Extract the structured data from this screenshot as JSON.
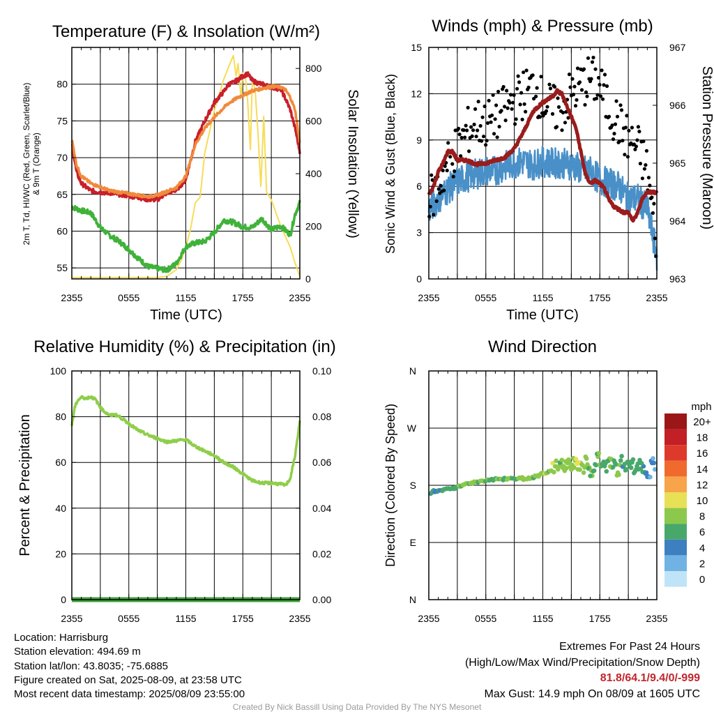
{
  "panels": {
    "temperature": {
      "title": "Temperature (F) & Insolation (W/m²)",
      "xlabel": "Time (UTC)",
      "ylabel_left_line1": "2m T, Td, HI/WC (Red, Green, Scarlet/Blue)",
      "ylabel_left_line2": "& 9m T (Orange)",
      "ylabel_right": "Solar Insolation (Yellow)"
    },
    "winds": {
      "title": "Winds (mph) & Pressure (mb)",
      "xlabel": "Time (UTC)",
      "ylabel_left": "Sonic Wind & Gust (Blue, Black)",
      "ylabel_right": "Station Pressure (Maroon)"
    },
    "humidity": {
      "title": "Relative Humidity (%) & Precipitation (in)",
      "ylabel_left": "Percent & Precipitation"
    },
    "direction": {
      "title": "Wind Direction",
      "ylabel_left": "Direction (Colored By Speed)",
      "colorbar_title": "mph"
    }
  },
  "chart_data": [
    {
      "type": "line",
      "id": "temperature",
      "x_ticks": [
        "2355",
        "0555",
        "1155",
        "1755",
        "2355"
      ],
      "xlim": [
        0,
        24
      ],
      "ylim": [
        53.5,
        85
      ],
      "yticks": [
        55,
        60,
        65,
        70,
        75,
        80
      ],
      "y2lim": [
        0,
        880
      ],
      "y2ticks": [
        0,
        200,
        400,
        600,
        800
      ],
      "colors": {
        "temp": "#c8202b",
        "dewpoint": "#3fb23a",
        "hiwc": "#e02a26",
        "temp9m": "#f08a3c",
        "solar": "#f7dc56"
      },
      "series": [
        {
          "name": "2m T",
          "axis": "left",
          "x": [
            0,
            0.5,
            1,
            2,
            3,
            4,
            5,
            6,
            7,
            8,
            9,
            10,
            11,
            12,
            13,
            14,
            15,
            16,
            16.5,
            17,
            17.5,
            18,
            18.5,
            19,
            19.5,
            20,
            21,
            22,
            22.5,
            23,
            23.5,
            24
          ],
          "values": [
            72,
            68,
            66.5,
            65.5,
            65.3,
            65.2,
            65,
            64.8,
            64.6,
            64.3,
            64.3,
            65.2,
            65.6,
            67,
            72.2,
            75,
            77.5,
            79,
            80,
            80.2,
            80.6,
            81.1,
            81.4,
            80.5,
            80.2,
            80,
            79.6,
            79.3,
            78,
            76.5,
            74,
            70.8
          ]
        },
        {
          "name": "9m T",
          "axis": "left",
          "x": [
            0,
            0.5,
            1,
            2,
            3,
            4,
            5,
            6,
            7,
            8,
            9,
            10,
            11,
            12,
            13,
            14,
            15,
            16,
            16.5,
            17,
            17.5,
            18,
            18.5,
            19,
            20,
            21,
            22,
            22.5,
            23,
            23.5,
            24
          ],
          "values": [
            72.5,
            69,
            67.5,
            66.5,
            66,
            65.5,
            65.3,
            65.1,
            64.9,
            64.7,
            64.9,
            65.4,
            65.9,
            67.5,
            71.8,
            74,
            75.5,
            76.8,
            77.4,
            77.8,
            78.2,
            78.5,
            78.8,
            79.1,
            79.4,
            79.7,
            79.6,
            79.2,
            78.2,
            76.5,
            72
          ]
        },
        {
          "name": "Td",
          "axis": "left",
          "x": [
            0,
            1,
            2,
            3,
            4,
            5,
            6,
            7,
            8,
            9,
            10,
            11,
            12,
            13,
            14,
            15,
            16,
            17,
            18,
            19,
            20,
            21,
            22,
            23,
            23.5,
            24
          ],
          "values": [
            63.3,
            62.8,
            62.5,
            60.5,
            59.4,
            58.6,
            57.5,
            56.3,
            55.2,
            54.9,
            54.7,
            55.6,
            57.9,
            58.4,
            58.6,
            59.8,
            61.5,
            61.2,
            60.6,
            60.5,
            61.7,
            60.2,
            60.7,
            59.5,
            62.3,
            63.9
          ]
        },
        {
          "name": "Solar",
          "axis": "right",
          "x": [
            0,
            6,
            9,
            10,
            11,
            11.5,
            12,
            12.5,
            13,
            13.5,
            14,
            14.5,
            15,
            15.5,
            16,
            16.5,
            17,
            17.3,
            17.5,
            17.8,
            18,
            18.3,
            18.5,
            18.8,
            19,
            19.3,
            19.6,
            19.9,
            20.2,
            20.5,
            21,
            21.5,
            22,
            22.5,
            23,
            23.5,
            24
          ],
          "values": [
            5,
            5,
            5,
            10,
            35,
            70,
            120,
            190,
            290,
            310,
            480,
            560,
            640,
            700,
            760,
            805,
            850,
            770,
            820,
            690,
            780,
            760,
            680,
            490,
            760,
            720,
            550,
            350,
            620,
            330,
            300,
            250,
            200,
            160,
            120,
            60,
            10
          ]
        }
      ]
    },
    {
      "type": "line",
      "id": "winds",
      "x_ticks": [
        "2355",
        "0555",
        "1155",
        "1755",
        "2355"
      ],
      "xlim": [
        0,
        24
      ],
      "ylim": [
        0,
        15
      ],
      "yticks": [
        0,
        3,
        6,
        9,
        12,
        15
      ],
      "y2lim": [
        963,
        967
      ],
      "y2ticks": [
        963,
        964,
        965,
        966,
        967
      ],
      "colors": {
        "wind": "#4a90c8",
        "gust": "#000000",
        "pressure": "#9a1c1c"
      },
      "series": [
        {
          "name": "Sonic Wind",
          "axis": "left",
          "x": [
            0,
            1,
            2,
            3,
            4,
            5,
            6,
            7,
            8,
            9,
            10,
            11,
            12,
            13,
            14,
            15,
            16,
            17,
            18,
            19,
            20,
            21,
            22,
            23,
            23.5,
            24
          ],
          "values": [
            4.5,
            5.2,
            5.8,
            6.3,
            6.6,
            6.8,
            7.0,
            7.0,
            7.3,
            7.5,
            7.6,
            7.4,
            7.6,
            7.5,
            7.5,
            7.4,
            7.1,
            7.0,
            6.4,
            6.2,
            6.0,
            5.2,
            5.2,
            4.5,
            3.0,
            1.5
          ]
        },
        {
          "name": "Gust",
          "axis": "left",
          "x": [
            0,
            1,
            2,
            3,
            4,
            5,
            6,
            7,
            8,
            9,
            10,
            11,
            12,
            13,
            14,
            15,
            16,
            17,
            18,
            19,
            20,
            21,
            22,
            23,
            23.5,
            24
          ],
          "values": [
            5.0,
            6.0,
            7.5,
            8.5,
            9.5,
            10.2,
            10.0,
            10.5,
            11.0,
            11.5,
            12.0,
            12.5,
            11.5,
            11.0,
            11.0,
            12.0,
            12.5,
            13.0,
            12.5,
            11.0,
            10.0,
            9.0,
            8.5,
            7.0,
            4.5,
            2.5
          ]
        },
        {
          "name": "Pressure",
          "axis": "right",
          "x": [
            0,
            0.5,
            1,
            1.5,
            2,
            2.5,
            3,
            4,
            5,
            6,
            7,
            8,
            9,
            10,
            11,
            12,
            13,
            13.5,
            14,
            14.5,
            15,
            15.5,
            16,
            16.5,
            17,
            17.5,
            18,
            18.5,
            19,
            19.5,
            20,
            20.5,
            21,
            21.5,
            22,
            22.5,
            23,
            23.5,
            24
          ],
          "values": [
            964.45,
            964.6,
            964.85,
            965.0,
            965.2,
            965.2,
            965.05,
            965.05,
            964.98,
            965.0,
            965.05,
            965.1,
            965.25,
            965.55,
            965.9,
            966.05,
            966.15,
            966.25,
            966.2,
            966.0,
            965.8,
            965.6,
            965.2,
            964.8,
            964.65,
            964.7,
            964.65,
            964.55,
            964.35,
            964.25,
            964.2,
            964.15,
            964.15,
            964.0,
            964.15,
            964.4,
            964.5,
            964.5,
            964.5
          ]
        }
      ]
    },
    {
      "type": "line",
      "id": "humidity",
      "x_ticks": [
        "2355",
        "0555",
        "1155",
        "1755",
        "2355"
      ],
      "xlim": [
        0,
        24
      ],
      "ylim": [
        0,
        100
      ],
      "yticks": [
        0,
        20,
        40,
        60,
        80,
        100
      ],
      "y2lim": [
        0,
        0.1
      ],
      "y2ticks": [
        "0.00",
        "0.02",
        "0.04",
        "0.06",
        "0.08",
        "0.10"
      ],
      "colors": {
        "rh": "#8fce4a",
        "precip": "#3da13a"
      },
      "series": [
        {
          "name": "RH",
          "axis": "left",
          "x": [
            0,
            0.3,
            0.6,
            1,
            1.5,
            2,
            2.5,
            3,
            3.5,
            4,
            4.5,
            5,
            6,
            7,
            8,
            9,
            10,
            11,
            12,
            13,
            14,
            15,
            16,
            17,
            18,
            19,
            20,
            21,
            22,
            22.5,
            23,
            23.5,
            24
          ],
          "values": [
            76,
            84,
            87,
            88.5,
            88,
            88.7,
            87.5,
            84,
            82,
            80.5,
            81,
            80,
            77,
            74,
            72,
            70.5,
            69,
            69.5,
            70,
            67,
            65,
            63,
            60,
            58,
            55,
            52,
            51,
            51,
            50.5,
            50,
            53,
            63,
            78
          ]
        },
        {
          "name": "Precipitation",
          "axis": "right",
          "x": [
            0,
            24
          ],
          "values": [
            0,
            0
          ]
        }
      ]
    },
    {
      "type": "scatter",
      "id": "direction",
      "x_ticks": [
        "2355",
        "0555",
        "1155",
        "1755",
        "2355"
      ],
      "xlim": [
        0,
        24
      ],
      "ylim": [
        0,
        360
      ],
      "y_ticks": [
        {
          "label": "N",
          "value": 0
        },
        {
          "label": "E",
          "value": 90
        },
        {
          "label": "S",
          "value": 180
        },
        {
          "label": "W",
          "value": 270
        },
        {
          "label": "N",
          "value": 360
        }
      ],
      "points": [
        {
          "x": 0.2,
          "y": 167,
          "speed": 4
        },
        {
          "x": 0.5,
          "y": 172,
          "speed": 4
        },
        {
          "x": 0.9,
          "y": 170,
          "speed": 5
        },
        {
          "x": 1.3,
          "y": 172,
          "speed": 5
        },
        {
          "x": 1.7,
          "y": 174,
          "speed": 5
        },
        {
          "x": 2.1,
          "y": 175,
          "speed": 6
        },
        {
          "x": 2.5,
          "y": 176,
          "speed": 6
        },
        {
          "x": 2.9,
          "y": 177,
          "speed": 6
        },
        {
          "x": 3.3,
          "y": 178,
          "speed": 7
        },
        {
          "x": 3.7,
          "y": 181,
          "speed": 7
        },
        {
          "x": 4.1,
          "y": 183,
          "speed": 6
        },
        {
          "x": 4.5,
          "y": 184,
          "speed": 7
        },
        {
          "x": 4.9,
          "y": 185,
          "speed": 7
        },
        {
          "x": 5.3,
          "y": 186,
          "speed": 7
        },
        {
          "x": 5.7,
          "y": 187,
          "speed": 7
        },
        {
          "x": 6.1,
          "y": 188,
          "speed": 7
        },
        {
          "x": 6.5,
          "y": 189,
          "speed": 6
        },
        {
          "x": 6.9,
          "y": 189,
          "speed": 7
        },
        {
          "x": 7.3,
          "y": 190,
          "speed": 7
        },
        {
          "x": 7.7,
          "y": 190,
          "speed": 6
        },
        {
          "x": 8.1,
          "y": 190,
          "speed": 7
        },
        {
          "x": 8.5,
          "y": 191,
          "speed": 7
        },
        {
          "x": 8.9,
          "y": 191,
          "speed": 6
        },
        {
          "x": 9.3,
          "y": 190,
          "speed": 7
        },
        {
          "x": 9.7,
          "y": 191,
          "speed": 7
        },
        {
          "x": 10.1,
          "y": 190,
          "speed": 8
        },
        {
          "x": 10.5,
          "y": 192,
          "speed": 7
        },
        {
          "x": 10.9,
          "y": 193,
          "speed": 7
        },
        {
          "x": 11.3,
          "y": 194,
          "speed": 8
        },
        {
          "x": 11.7,
          "y": 197,
          "speed": 7
        },
        {
          "x": 12.1,
          "y": 198,
          "speed": 8
        },
        {
          "x": 12.5,
          "y": 200,
          "speed": 7
        },
        {
          "x": 12.9,
          "y": 203,
          "speed": 8
        },
        {
          "x": 13.3,
          "y": 210,
          "speed": 8
        },
        {
          "x": 13.6,
          "y": 205,
          "speed": 7
        },
        {
          "x": 13.9,
          "y": 214,
          "speed": 8
        },
        {
          "x": 14.2,
          "y": 210,
          "speed": 7
        },
        {
          "x": 14.5,
          "y": 207,
          "speed": 8
        },
        {
          "x": 14.8,
          "y": 216,
          "speed": 8
        },
        {
          "x": 15.1,
          "y": 212,
          "speed": 7
        },
        {
          "x": 15.4,
          "y": 219,
          "speed": 8
        },
        {
          "x": 15.7,
          "y": 205,
          "speed": 8
        },
        {
          "x": 16.0,
          "y": 215,
          "speed": 7
        },
        {
          "x": 16.3,
          "y": 200,
          "speed": 8
        },
        {
          "x": 16.6,
          "y": 222,
          "speed": 7
        },
        {
          "x": 16.9,
          "y": 208,
          "speed": 7
        },
        {
          "x": 17.2,
          "y": 195,
          "speed": 7
        },
        {
          "x": 17.5,
          "y": 213,
          "speed": 6
        },
        {
          "x": 17.8,
          "y": 225,
          "speed": 7
        },
        {
          "x": 18.1,
          "y": 210,
          "speed": 6
        },
        {
          "x": 18.4,
          "y": 217,
          "speed": 6
        },
        {
          "x": 18.7,
          "y": 202,
          "speed": 6
        },
        {
          "x": 19.0,
          "y": 222,
          "speed": 7
        },
        {
          "x": 19.3,
          "y": 208,
          "speed": 6
        },
        {
          "x": 19.6,
          "y": 215,
          "speed": 6
        },
        {
          "x": 19.9,
          "y": 200,
          "speed": 7
        },
        {
          "x": 20.2,
          "y": 219,
          "speed": 5
        },
        {
          "x": 20.5,
          "y": 210,
          "speed": 6
        },
        {
          "x": 20.8,
          "y": 205,
          "speed": 6
        },
        {
          "x": 21.1,
          "y": 212,
          "speed": 5
        },
        {
          "x": 21.4,
          "y": 216,
          "speed": 5
        },
        {
          "x": 21.7,
          "y": 202,
          "speed": 6
        },
        {
          "x": 22.0,
          "y": 214,
          "speed": 5
        },
        {
          "x": 22.3,
          "y": 206,
          "speed": 5
        },
        {
          "x": 22.6,
          "y": 210,
          "speed": 4
        },
        {
          "x": 22.9,
          "y": 200,
          "speed": 4
        },
        {
          "x": 23.2,
          "y": 193,
          "speed": 3
        },
        {
          "x": 23.5,
          "y": 215,
          "speed": 3
        },
        {
          "x": 23.8,
          "y": 205,
          "speed": 2
        }
      ],
      "colorbar": {
        "title": "mph",
        "labels": [
          "20+",
          "18",
          "16",
          "14",
          "12",
          "10",
          "8",
          "6",
          "4",
          "2",
          "0"
        ],
        "colors": [
          "#9b1717",
          "#c21f26",
          "#dd3a2c",
          "#f06a2e",
          "#f7a44a",
          "#e8e057",
          "#8cc84b",
          "#47a86a",
          "#3e7fc0",
          "#6fb2e3",
          "#bfe4f7"
        ]
      }
    }
  ],
  "footer": {
    "location": "Location: Harrisburg",
    "elevation": "Station elevation: 494.69 m",
    "latlon": "Station lat/lon: 43.8035; -75.6885",
    "created": "Figure created on Sat, 2025-08-09, at 23:58 UTC",
    "recent": "Most recent data timestamp: 2025/08/09 23:55:00",
    "extremes_title": "Extremes For Past 24 Hours",
    "extremes_legend": "(High/Low/Max Wind/Precipitation/Snow Depth)",
    "extremes_values": "81.8/64.1/9.4/0/-999",
    "max_gust": "Max Gust: 14.9 mph On 08/09 at 1605 UTC",
    "credit": "Created By Nick Bassill Using Data Provided By The NYS Mesonet"
  }
}
